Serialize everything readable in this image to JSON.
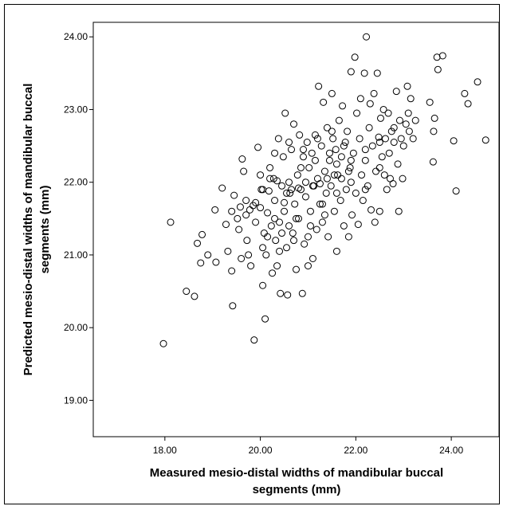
{
  "chart_data": {
    "type": "scatter",
    "title": "",
    "xlabel": [
      "Measured mesio-distal widths of mandibular buccal",
      "segments (mm)"
    ],
    "ylabel": [
      "Predicted mesio-distal widths of mandibular buccal",
      "segments (mm)"
    ],
    "xlim": [
      16.5,
      25.0
    ],
    "ylim": [
      18.5,
      24.2
    ],
    "x_ticks": [
      18,
      20,
      22,
      24
    ],
    "x_tick_labels": [
      "18.00",
      "20.00",
      "22.00",
      "24.00"
    ],
    "y_ticks": [
      19,
      20,
      21,
      22,
      23,
      24
    ],
    "y_tick_labels": [
      "19.00",
      "20.00",
      "21.00",
      "22.00",
      "23.00",
      "24.00"
    ],
    "grid": false,
    "marker": "open-circle",
    "series": [
      {
        "points": [
          [
            17.97,
            19.78
          ],
          [
            18.12,
            21.45
          ],
          [
            18.45,
            20.5
          ],
          [
            18.62,
            20.43
          ],
          [
            18.68,
            21.16
          ],
          [
            18.78,
            21.28
          ],
          [
            18.75,
            20.89
          ],
          [
            18.9,
            21.0
          ],
          [
            19.05,
            21.62
          ],
          [
            19.07,
            20.9
          ],
          [
            19.2,
            21.92
          ],
          [
            19.28,
            21.42
          ],
          [
            19.32,
            21.05
          ],
          [
            19.4,
            20.78
          ],
          [
            19.42,
            20.3
          ],
          [
            19.45,
            21.82
          ],
          [
            19.52,
            21.5
          ],
          [
            19.55,
            21.35
          ],
          [
            19.6,
            20.95
          ],
          [
            19.62,
            22.32
          ],
          [
            19.65,
            22.15
          ],
          [
            19.7,
            21.75
          ],
          [
            19.72,
            21.2
          ],
          [
            19.78,
            21.62
          ],
          [
            19.8,
            20.85
          ],
          [
            19.85,
            21.68
          ],
          [
            19.87,
            19.83
          ],
          [
            19.9,
            21.45
          ],
          [
            19.95,
            22.48
          ],
          [
            20.0,
            22.1
          ],
          [
            20.02,
            21.9
          ],
          [
            20.05,
            20.58
          ],
          [
            20.08,
            21.3
          ],
          [
            20.1,
            20.12
          ],
          [
            20.12,
            21.0
          ],
          [
            20.15,
            21.58
          ],
          [
            20.18,
            21.88
          ],
          [
            20.2,
            22.2
          ],
          [
            20.23,
            21.4
          ],
          [
            20.25,
            20.75
          ],
          [
            20.28,
            22.05
          ],
          [
            20.3,
            21.75
          ],
          [
            20.32,
            21.2
          ],
          [
            20.35,
            20.85
          ],
          [
            20.38,
            22.6
          ],
          [
            20.4,
            21.45
          ],
          [
            20.42,
            20.47
          ],
          [
            20.45,
            21.95
          ],
          [
            20.48,
            22.35
          ],
          [
            20.5,
            21.6
          ],
          [
            20.52,
            22.95
          ],
          [
            20.55,
            21.1
          ],
          [
            20.57,
            20.45
          ],
          [
            20.6,
            22.0
          ],
          [
            20.62,
            21.85
          ],
          [
            20.65,
            22.45
          ],
          [
            20.68,
            21.3
          ],
          [
            20.7,
            22.8
          ],
          [
            20.72,
            21.7
          ],
          [
            20.75,
            20.8
          ],
          [
            20.78,
            22.1
          ],
          [
            20.8,
            21.5
          ],
          [
            20.82,
            22.65
          ],
          [
            20.85,
            21.9
          ],
          [
            20.88,
            20.47
          ],
          [
            20.9,
            22.35
          ],
          [
            20.92,
            21.15
          ],
          [
            20.95,
            21.8
          ],
          [
            20.98,
            22.55
          ],
          [
            21.0,
            20.85
          ],
          [
            21.02,
            22.2
          ],
          [
            21.05,
            21.6
          ],
          [
            21.08,
            22.4
          ],
          [
            21.1,
            20.95
          ],
          [
            21.12,
            21.95
          ],
          [
            21.15,
            22.65
          ],
          [
            21.18,
            21.35
          ],
          [
            21.2,
            22.05
          ],
          [
            21.22,
            23.32
          ],
          [
            21.25,
            21.7
          ],
          [
            21.28,
            22.5
          ],
          [
            21.3,
            21.45
          ],
          [
            21.32,
            23.1
          ],
          [
            21.35,
            22.15
          ],
          [
            21.38,
            21.85
          ],
          [
            21.4,
            22.75
          ],
          [
            21.42,
            21.25
          ],
          [
            21.45,
            22.3
          ],
          [
            21.48,
            21.95
          ],
          [
            21.5,
            23.22
          ],
          [
            21.52,
            22.6
          ],
          [
            21.55,
            21.6
          ],
          [
            21.58,
            22.45
          ],
          [
            21.6,
            21.05
          ],
          [
            21.62,
            22.1
          ],
          [
            21.65,
            22.85
          ],
          [
            21.68,
            21.75
          ],
          [
            21.7,
            22.35
          ],
          [
            21.72,
            23.05
          ],
          [
            21.75,
            21.4
          ],
          [
            21.78,
            22.55
          ],
          [
            21.8,
            21.9
          ],
          [
            21.82,
            22.7
          ],
          [
            21.85,
            21.25
          ],
          [
            21.88,
            22.2
          ],
          [
            21.9,
            23.52
          ],
          [
            21.92,
            21.55
          ],
          [
            21.95,
            22.4
          ],
          [
            21.98,
            23.72
          ],
          [
            22.0,
            21.85
          ],
          [
            22.02,
            22.95
          ],
          [
            22.05,
            21.42
          ],
          [
            22.08,
            22.6
          ],
          [
            22.1,
            23.15
          ],
          [
            22.12,
            22.1
          ],
          [
            22.15,
            21.75
          ],
          [
            22.18,
            23.5
          ],
          [
            22.2,
            22.3
          ],
          [
            22.22,
            24.0
          ],
          [
            22.25,
            21.95
          ],
          [
            22.28,
            22.75
          ],
          [
            22.3,
            23.08
          ],
          [
            22.32,
            21.62
          ],
          [
            22.35,
            22.5
          ],
          [
            22.38,
            23.22
          ],
          [
            22.4,
            21.45
          ],
          [
            22.42,
            22.15
          ],
          [
            22.45,
            23.5
          ],
          [
            22.48,
            22.62
          ],
          [
            22.5,
            21.6
          ],
          [
            22.52,
            22.88
          ],
          [
            22.55,
            22.35
          ],
          [
            22.58,
            23.0
          ],
          [
            22.6,
            22.1
          ],
          [
            22.62,
            22.6
          ],
          [
            22.65,
            21.9
          ],
          [
            22.68,
            22.95
          ],
          [
            22.7,
            22.4
          ],
          [
            22.72,
            22.05
          ],
          [
            22.75,
            22.7
          ],
          [
            22.78,
            21.98
          ],
          [
            22.8,
            22.55
          ],
          [
            22.85,
            23.25
          ],
          [
            22.88,
            22.25
          ],
          [
            22.9,
            21.6
          ],
          [
            22.92,
            22.85
          ],
          [
            22.95,
            22.6
          ],
          [
            22.98,
            22.05
          ],
          [
            23.0,
            22.5
          ],
          [
            23.05,
            22.8
          ],
          [
            23.08,
            23.32
          ],
          [
            23.1,
            22.95
          ],
          [
            23.12,
            22.7
          ],
          [
            23.15,
            23.15
          ],
          [
            23.2,
            22.6
          ],
          [
            23.25,
            22.85
          ],
          [
            23.55,
            23.1
          ],
          [
            23.62,
            22.28
          ],
          [
            23.63,
            22.7
          ],
          [
            23.65,
            22.88
          ],
          [
            23.7,
            23.72
          ],
          [
            23.72,
            23.55
          ],
          [
            23.82,
            23.74
          ],
          [
            24.05,
            22.57
          ],
          [
            24.1,
            21.88
          ],
          [
            24.28,
            23.22
          ],
          [
            24.35,
            23.08
          ],
          [
            24.55,
            23.38
          ],
          [
            24.72,
            22.58
          ],
          [
            19.58,
            21.66
          ],
          [
            19.9,
            21.72
          ],
          [
            20.05,
            21.9
          ],
          [
            20.2,
            22.05
          ],
          [
            20.35,
            22.02
          ],
          [
            20.5,
            21.72
          ],
          [
            20.65,
            21.9
          ],
          [
            20.8,
            21.92
          ],
          [
            20.95,
            22.0
          ],
          [
            21.1,
            21.95
          ],
          [
            21.25,
            21.98
          ],
          [
            21.4,
            22.05
          ],
          [
            21.55,
            22.1
          ],
          [
            21.7,
            22.05
          ],
          [
            21.85,
            22.15
          ],
          [
            20.15,
            21.25
          ],
          [
            20.45,
            21.3
          ],
          [
            20.75,
            21.5
          ],
          [
            21.05,
            21.4
          ],
          [
            21.35,
            21.55
          ],
          [
            20.3,
            22.4
          ],
          [
            20.6,
            22.55
          ],
          [
            20.9,
            22.45
          ],
          [
            21.2,
            22.6
          ],
          [
            21.5,
            22.7
          ],
          [
            19.75,
            21.0
          ],
          [
            20.05,
            21.1
          ],
          [
            20.4,
            21.05
          ],
          [
            20.7,
            21.2
          ],
          [
            21.0,
            21.25
          ],
          [
            21.6,
            22.25
          ],
          [
            21.9,
            22.3
          ],
          [
            22.2,
            22.45
          ],
          [
            22.5,
            22.55
          ],
          [
            22.8,
            22.75
          ],
          [
            20.55,
            21.85
          ],
          [
            20.85,
            22.2
          ],
          [
            21.15,
            22.3
          ],
          [
            21.45,
            22.4
          ],
          [
            21.75,
            22.5
          ],
          [
            19.4,
            21.6
          ],
          [
            19.7,
            21.55
          ],
          [
            20.0,
            21.65
          ],
          [
            20.3,
            21.5
          ],
          [
            20.6,
            21.4
          ],
          [
            21.3,
            21.7
          ],
          [
            21.6,
            21.85
          ],
          [
            21.9,
            22.0
          ],
          [
            22.2,
            21.9
          ],
          [
            22.5,
            22.2
          ]
        ]
      }
    ]
  }
}
